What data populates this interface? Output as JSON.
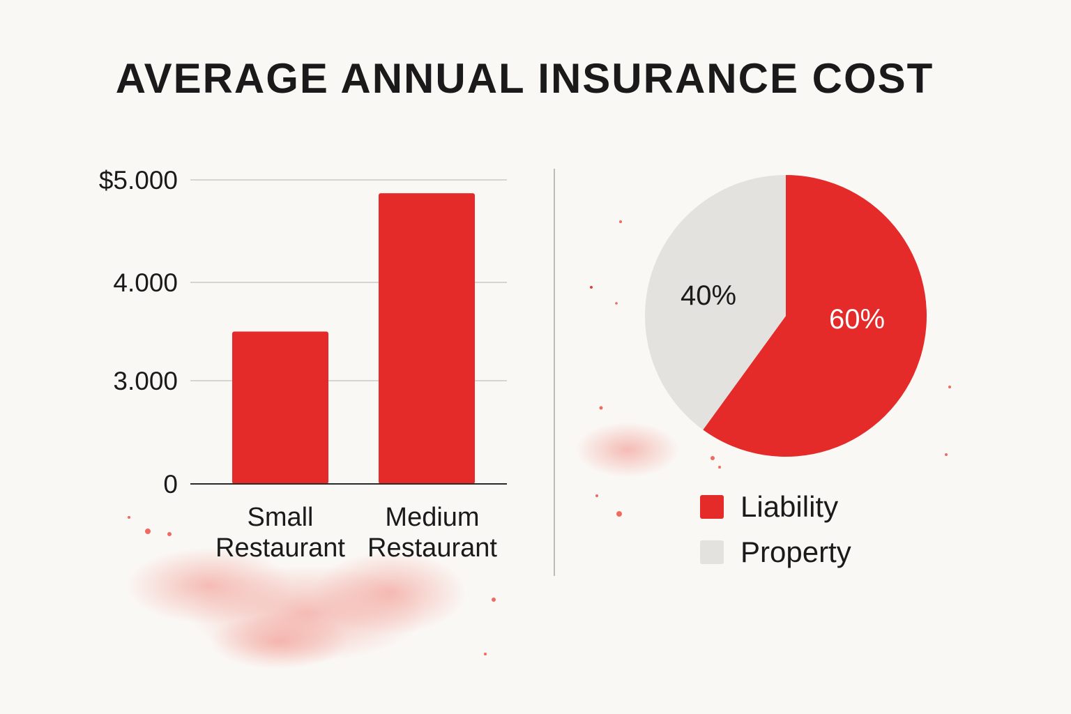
{
  "colors": {
    "red": "#e52a2a",
    "grey": "#e3e2de",
    "text": "#1a1a1a",
    "grid": "#c9c7c3"
  },
  "chart_data": [
    {
      "type": "bar",
      "title": "AVERAGE ANNUAL INSURANCE COST",
      "categories": [
        {
          "line1": "Small",
          "line2": "Restaurant"
        },
        {
          "line1": "Medium",
          "line2": "Restaurant"
        }
      ],
      "values": [
        3500,
        4870
      ],
      "yticks": [
        {
          "value": 0,
          "label": "0"
        },
        {
          "value": 3000,
          "label": "3.000"
        },
        {
          "value": 4000,
          "label": "4.000"
        },
        {
          "value": 5000,
          "label": "$5.000"
        }
      ],
      "grid": true
    },
    {
      "type": "pie",
      "slices": [
        {
          "name": "Liability",
          "value": 60,
          "label": "60%"
        },
        {
          "name": "Property",
          "value": 40,
          "label": "40%"
        }
      ],
      "legend": "bottom"
    }
  ]
}
